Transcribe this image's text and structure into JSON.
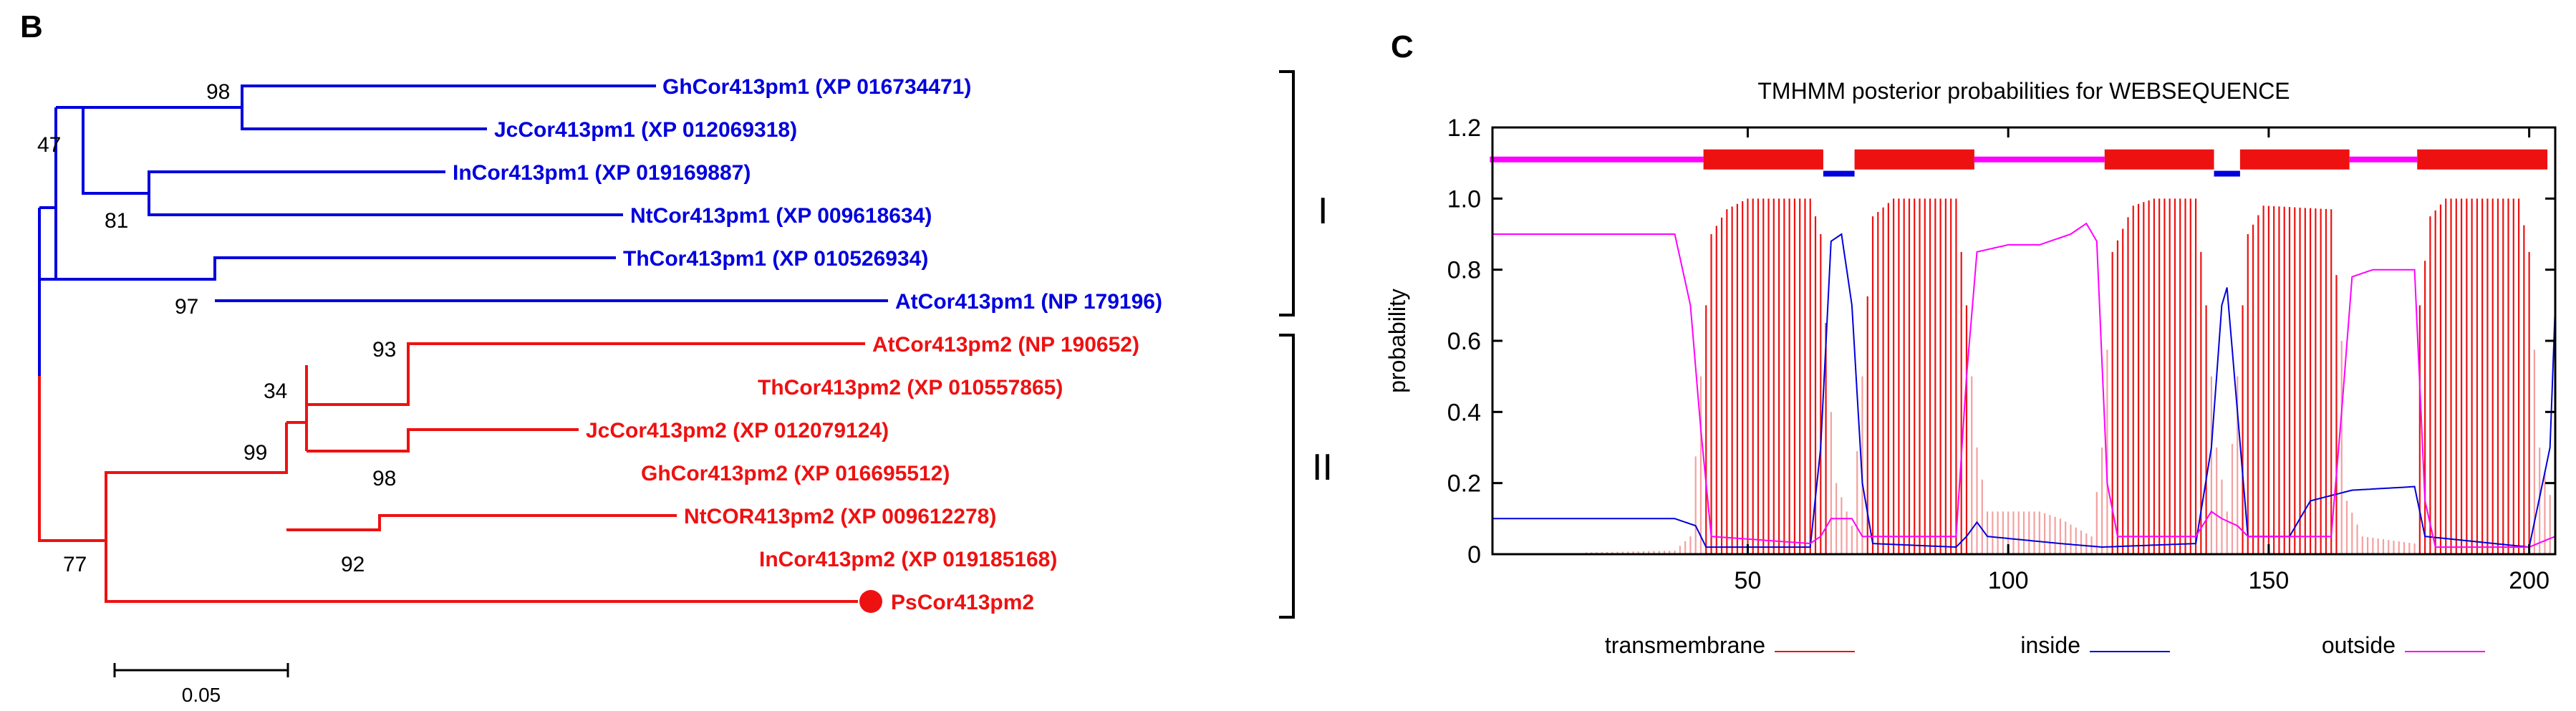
{
  "colors": {
    "blue": "#0000dd",
    "red": "#ee1111",
    "magenta": "#ff00ff",
    "lightred": "#f4a0a0",
    "black": "#000000"
  },
  "panel_b": {
    "letter": "B",
    "taxa": [
      "GhCor413pm1 (XP 016734471)",
      "JcCor413pm1 (XP 012069318)",
      "InCor413pm1 (XP 019169887)",
      "NtCor413pm1 (XP 009618634)",
      "ThCor413pm1 (XP 010526934)",
      "AtCor413pm1 (NP 179196)",
      "AtCor413pm2 (NP 190652)",
      "ThCor413pm2 (XP 010557865)",
      "JcCor413pm2 (XP 012079124)",
      "GhCor413pm2 (XP 016695512)",
      "NtCOR413pm2 (XP 009612278)",
      "InCor413pm2 (XP 019185168)",
      "PsCor413pm2"
    ],
    "bootstrap": [
      "98",
      "47",
      "81",
      "97",
      "93",
      "34",
      "99",
      "98",
      "92",
      "77"
    ],
    "clades": [
      "I",
      "II"
    ],
    "scale_bar": "0.05"
  },
  "chart_data": {
    "type": "line",
    "panel_letter": "C",
    "title": "TMHMM posterior probabilities for WEBSEQUENCE",
    "xlabel": "",
    "ylabel": "probability",
    "xlim": [
      1,
      205
    ],
    "ylim": [
      0,
      1.2
    ],
    "x_ticks": [
      "50",
      "100",
      "150",
      "200"
    ],
    "y_ticks": [
      "0",
      "0.2",
      "0.4",
      "0.6",
      "0.8",
      "1.0",
      "1.2"
    ],
    "legend": [
      "transmembrane",
      "inside",
      "outside"
    ],
    "topology": [
      {
        "type": "outside",
        "start": 1,
        "end": 41
      },
      {
        "type": "transmembrane",
        "start": 42,
        "end": 64
      },
      {
        "type": "inside",
        "start": 65,
        "end": 70
      },
      {
        "type": "transmembrane",
        "start": 71,
        "end": 93
      },
      {
        "type": "outside",
        "start": 94,
        "end": 118
      },
      {
        "type": "transmembrane",
        "start": 119,
        "end": 139
      },
      {
        "type": "inside",
        "start": 140,
        "end": 144
      },
      {
        "type": "transmembrane",
        "start": 145,
        "end": 165
      },
      {
        "type": "outside",
        "start": 166,
        "end": 178
      },
      {
        "type": "transmembrane",
        "start": 179,
        "end": 203
      }
    ],
    "series": [
      {
        "name": "transmembrane",
        "points": [
          [
            1,
            0
          ],
          [
            36,
            0.01
          ],
          [
            39,
            0.05
          ],
          [
            41,
            0.5
          ],
          [
            43,
            0.9
          ],
          [
            46,
            0.97
          ],
          [
            50,
            1.0
          ],
          [
            62,
            1.0
          ],
          [
            64,
            0.9
          ],
          [
            66,
            0.4
          ],
          [
            67,
            0.2
          ],
          [
            70,
            0.08
          ],
          [
            72,
            0.5
          ],
          [
            74,
            0.95
          ],
          [
            78,
            1.0
          ],
          [
            90,
            1.0
          ],
          [
            92,
            0.7
          ],
          [
            94,
            0.3
          ],
          [
            96,
            0.12
          ],
          [
            106,
            0.12
          ],
          [
            110,
            0.1
          ],
          [
            116,
            0.05
          ],
          [
            118,
            0.3
          ],
          [
            120,
            0.85
          ],
          [
            124,
            0.98
          ],
          [
            128,
            1.0
          ],
          [
            136,
            1.0
          ],
          [
            138,
            0.7
          ],
          [
            140,
            0.3
          ],
          [
            142,
            0.12
          ],
          [
            144,
            0.5
          ],
          [
            146,
            0.9
          ],
          [
            149,
            0.98
          ],
          [
            162,
            0.97
          ],
          [
            164,
            0.6
          ],
          [
            165,
            0.15
          ],
          [
            168,
            0.05
          ],
          [
            178,
            0.03
          ],
          [
            179,
            0.7
          ],
          [
            181,
            0.95
          ],
          [
            184,
            1.0
          ],
          [
            198,
            1.0
          ],
          [
            200,
            0.85
          ],
          [
            202,
            0.3
          ],
          [
            205,
            0.1
          ]
        ]
      },
      {
        "name": "inside",
        "points": [
          [
            1,
            0.1
          ],
          [
            36,
            0.1
          ],
          [
            40,
            0.08
          ],
          [
            42,
            0.02
          ],
          [
            62,
            0.02
          ],
          [
            64,
            0.3
          ],
          [
            66,
            0.88
          ],
          [
            68,
            0.9
          ],
          [
            70,
            0.7
          ],
          [
            72,
            0.2
          ],
          [
            74,
            0.03
          ],
          [
            90,
            0.02
          ],
          [
            92,
            0.05
          ],
          [
            94,
            0.09
          ],
          [
            96,
            0.05
          ],
          [
            110,
            0.03
          ],
          [
            118,
            0.02
          ],
          [
            136,
            0.03
          ],
          [
            139,
            0.3
          ],
          [
            141,
            0.7
          ],
          [
            142,
            0.75
          ],
          [
            144,
            0.4
          ],
          [
            146,
            0.05
          ],
          [
            154,
            0.05
          ],
          [
            158,
            0.15
          ],
          [
            166,
            0.18
          ],
          [
            178,
            0.19
          ],
          [
            180,
            0.05
          ],
          [
            200,
            0.02
          ],
          [
            204,
            0.3
          ],
          [
            205,
            0.7
          ]
        ]
      },
      {
        "name": "outside",
        "points": [
          [
            1,
            0.9
          ],
          [
            36,
            0.9
          ],
          [
            39,
            0.7
          ],
          [
            41,
            0.35
          ],
          [
            43,
            0.05
          ],
          [
            62,
            0.03
          ],
          [
            64,
            0.05
          ],
          [
            66,
            0.1
          ],
          [
            70,
            0.1
          ],
          [
            72,
            0.05
          ],
          [
            90,
            0.05
          ],
          [
            92,
            0.5
          ],
          [
            94,
            0.85
          ],
          [
            100,
            0.87
          ],
          [
            106,
            0.87
          ],
          [
            112,
            0.9
          ],
          [
            115,
            0.93
          ],
          [
            117,
            0.88
          ],
          [
            119,
            0.2
          ],
          [
            121,
            0.05
          ],
          [
            136,
            0.05
          ],
          [
            139,
            0.12
          ],
          [
            141,
            0.1
          ],
          [
            144,
            0.08
          ],
          [
            146,
            0.05
          ],
          [
            162,
            0.05
          ],
          [
            164,
            0.4
          ],
          [
            166,
            0.78
          ],
          [
            170,
            0.8
          ],
          [
            178,
            0.8
          ],
          [
            180,
            0.15
          ],
          [
            182,
            0.02
          ],
          [
            200,
            0.02
          ],
          [
            205,
            0.05
          ]
        ]
      }
    ]
  }
}
